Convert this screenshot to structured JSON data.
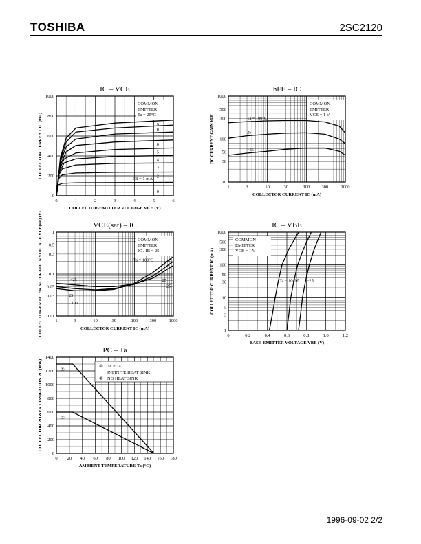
{
  "header": {
    "brand": "TOSHIBA",
    "part": "2SC2120"
  },
  "footer": {
    "date_page": "1996-09-02   2/2"
  },
  "chart_data": [
    {
      "id": "ic_vce",
      "type": "line",
      "title": "IC – VCE",
      "xlabel": "COLLECTOR-EMITTER VOLTAGE  VCE  (V)",
      "ylabel": "COLLECTOR CURRENT  IC  (mA)",
      "xlim": [
        0,
        6
      ],
      "ylim": [
        0,
        1000
      ],
      "xticks": [
        "0",
        "1",
        "2",
        "3",
        "4",
        "5",
        "6"
      ],
      "yticks": [
        "0",
        "200",
        "400",
        "600",
        "800",
        "1000"
      ],
      "note": [
        "COMMON",
        "EMITTER",
        "Ta = 25°C"
      ],
      "param_label": "IB = 1 mA",
      "series": [
        {
          "name": "0",
          "points": [
            [
              0,
              0
            ],
            [
              6,
              0
            ]
          ]
        },
        {
          "name": "1",
          "points": [
            [
              0,
              0
            ],
            [
              0.1,
              110
            ],
            [
              0.3,
              125
            ],
            [
              1,
              130
            ],
            [
              6,
              135
            ]
          ]
        },
        {
          "name": "2",
          "points": [
            [
              0,
              0
            ],
            [
              0.1,
              170
            ],
            [
              0.3,
              210
            ],
            [
              1,
              228
            ],
            [
              3,
              235
            ],
            [
              6,
              238
            ]
          ]
        },
        {
          "name": "3",
          "points": [
            [
              0,
              0
            ],
            [
              0.1,
              200
            ],
            [
              0.3,
              270
            ],
            [
              1,
              310
            ],
            [
              3,
              325
            ],
            [
              6,
              330
            ]
          ]
        },
        {
          "name": "4",
          "points": [
            [
              0,
              0
            ],
            [
              0.15,
              240
            ],
            [
              0.4,
              330
            ],
            [
              1,
              370
            ],
            [
              3,
              395
            ],
            [
              6,
              405
            ]
          ]
        },
        {
          "name": "5",
          "points": [
            [
              0,
              0
            ],
            [
              0.15,
              260
            ],
            [
              0.4,
              370
            ],
            [
              1,
              430
            ],
            [
              3,
              465
            ],
            [
              6,
              480
            ]
          ]
        },
        {
          "name": "6",
          "points": [
            [
              0,
              0
            ],
            [
              0.2,
              310
            ],
            [
              0.5,
              440
            ],
            [
              1,
              505
            ],
            [
              3,
              540
            ],
            [
              6,
              560
            ]
          ]
        },
        {
          "name": "7",
          "points": [
            [
              0,
              0
            ],
            [
              0.2,
              340
            ],
            [
              0.5,
              490
            ],
            [
              1,
              570
            ],
            [
              3,
              620
            ],
            [
              6,
              640
            ]
          ]
        },
        {
          "name": "8",
          "points": [
            [
              0,
              0
            ],
            [
              0.2,
              360
            ],
            [
              0.5,
              540
            ],
            [
              1,
              640
            ],
            [
              3,
              680
            ],
            [
              6,
              710
            ]
          ]
        },
        {
          "name": "9",
          "points": [
            [
              0,
              0
            ],
            [
              0.2,
              380
            ],
            [
              0.5,
              580
            ],
            [
              1,
              680
            ],
            [
              3,
              730
            ],
            [
              6,
              760
            ]
          ]
        }
      ]
    },
    {
      "id": "hfe_ic",
      "type": "line",
      "title": "hFE – IC",
      "xlabel": "COLLECTOR CURRENT  IC  (mA)",
      "ylabel": "DC CURRENT GAIN  hFE",
      "xscale": "log",
      "yscale": "log",
      "xlim": [
        1,
        1000
      ],
      "ylim": [
        10,
        1000
      ],
      "xticks": [
        "1",
        "3",
        "10",
        "30",
        "100",
        "300",
        "1000"
      ],
      "yticks": [
        "10",
        "30",
        "50",
        "100",
        "300",
        "500",
        "1000"
      ],
      "note": [
        "COMMON",
        "EMITTER",
        "VCE = 1 V"
      ],
      "series": [
        {
          "name": "Ta = 100°C",
          "points": [
            [
              1,
              240
            ],
            [
              3,
              255
            ],
            [
              10,
              265
            ],
            [
              30,
              270
            ],
            [
              100,
              270
            ],
            [
              300,
              250
            ],
            [
              700,
              200
            ],
            [
              1000,
              140
            ]
          ]
        },
        {
          "name": "25",
          "points": [
            [
              1,
              105
            ],
            [
              3,
              120
            ],
            [
              10,
              130
            ],
            [
              30,
              138
            ],
            [
              100,
              140
            ],
            [
              300,
              130
            ],
            [
              700,
              100
            ],
            [
              1000,
              78
            ]
          ]
        },
        {
          "name": "−25",
          "points": [
            [
              1,
              42
            ],
            [
              3,
              47
            ],
            [
              10,
              52
            ],
            [
              30,
              58
            ],
            [
              100,
              62
            ],
            [
              300,
              62
            ],
            [
              700,
              52
            ],
            [
              1000,
              42
            ]
          ]
        }
      ]
    },
    {
      "id": "vcesat_ic",
      "type": "line",
      "title": "VCE(sat) – IC",
      "xlabel": "COLLECTOR CURRENT  IC  (mA)",
      "ylabel": "COLLECTOR-EMITTER SATURATION VOLTAGE  VCE(sat)  (V)",
      "xscale": "log",
      "yscale": "log",
      "xlim": [
        1,
        1000
      ],
      "ylim": [
        0.01,
        1
      ],
      "xticks": [
        "1",
        "3",
        "10",
        "30",
        "100",
        "300",
        "1000"
      ],
      "yticks": [
        "0.01",
        "0.03",
        "0.05",
        "0.1",
        "0.3",
        "0.5",
        "1"
      ],
      "note": [
        "COMMON",
        "EMITTER",
        "IC / IB = 25"
      ],
      "series": [
        {
          "name": "Ta = 100°C",
          "points": [
            [
              1,
              0.045
            ],
            [
              3,
              0.04
            ],
            [
              10,
              0.04
            ],
            [
              30,
              0.043
            ],
            [
              100,
              0.06
            ],
            [
              300,
              0.11
            ],
            [
              1000,
              0.26
            ]
          ]
        },
        {
          "name": "25",
          "points": [
            [
              1,
              0.05
            ],
            [
              3,
              0.045
            ],
            [
              10,
              0.042
            ],
            [
              30,
              0.045
            ],
            [
              100,
              0.057
            ],
            [
              300,
              0.09
            ],
            [
              1000,
              0.2
            ]
          ]
        },
        {
          "name": "−25",
          "points": [
            [
              1,
              0.06
            ],
            [
              3,
              0.055
            ],
            [
              10,
              0.05
            ],
            [
              30,
              0.05
            ],
            [
              100,
              0.058
            ],
            [
              300,
              0.08
            ],
            [
              1000,
              0.16
            ]
          ]
        }
      ],
      "curve_labels": [
        "−25",
        "25",
        "100",
        "25",
        "−25",
        "Ta = 100°C"
      ]
    },
    {
      "id": "ic_vbe",
      "type": "line",
      "title": "IC – VBE",
      "xlabel": "BASE-EMITTER VOLTAGE  VBE  (V)",
      "ylabel": "COLLECTOR CURRENT  IC  (mA)",
      "yscale": "log",
      "xlim": [
        0,
        1.2
      ],
      "ylim": [
        1,
        1000
      ],
      "xticks": [
        "0",
        "0.2",
        "0.4",
        "0.6",
        "0.8",
        "1.0",
        "1.2"
      ],
      "yticks": [
        "1",
        "3",
        "5",
        "10",
        "30",
        "50",
        "100",
        "300",
        "500",
        "1000"
      ],
      "note": [
        "COMMON",
        "EMITTER",
        "VCE = 1 V"
      ],
      "series": [
        {
          "name": "Ta = 100°C",
          "points": [
            [
              0.42,
              1
            ],
            [
              0.45,
              3
            ],
            [
              0.48,
              10
            ],
            [
              0.51,
              30
            ],
            [
              0.55,
              100
            ],
            [
              0.62,
              300
            ],
            [
              0.72,
              1000
            ]
          ]
        },
        {
          "name": "25",
          "points": [
            [
              0.6,
              1
            ],
            [
              0.62,
              3
            ],
            [
              0.64,
              10
            ],
            [
              0.67,
              30
            ],
            [
              0.71,
              100
            ],
            [
              0.77,
              300
            ],
            [
              0.85,
              1000
            ]
          ]
        },
        {
          "name": "−25",
          "points": [
            [
              0.72,
              1
            ],
            [
              0.74,
              3
            ],
            [
              0.76,
              10
            ],
            [
              0.79,
              30
            ],
            [
              0.83,
              100
            ],
            [
              0.88,
              300
            ],
            [
              0.95,
              1000
            ]
          ]
        }
      ]
    },
    {
      "id": "pc_ta",
      "type": "line",
      "title": "PC – Ta",
      "xlabel": "AMBIENT TEMPERATURE  Ta  (°C)",
      "ylabel": "COLLECTOR POWER DISSIPATION  PC  (mW)",
      "xlim": [
        0,
        180
      ],
      "ylim": [
        0,
        1400
      ],
      "xticks": [
        "0",
        "20",
        "40",
        "60",
        "80",
        "100",
        "120",
        "140",
        "160",
        "180"
      ],
      "yticks": [
        "0",
        "200",
        "400",
        "600",
        "800",
        "1000",
        "1200",
        "1400"
      ],
      "legend": [
        {
          "mark": "①",
          "text": "Tc = Ta"
        },
        {
          "mark": "",
          "text": "INFINITE HEAT SINK"
        },
        {
          "mark": "②",
          "text": "NO HEAT SINK"
        }
      ],
      "series": [
        {
          "name": "①",
          "points": [
            [
              0,
              1300
            ],
            [
              25,
              1300
            ],
            [
              150,
              0
            ]
          ]
        },
        {
          "name": "②",
          "points": [
            [
              0,
              600
            ],
            [
              25,
              600
            ],
            [
              150,
              0
            ]
          ]
        }
      ]
    }
  ]
}
